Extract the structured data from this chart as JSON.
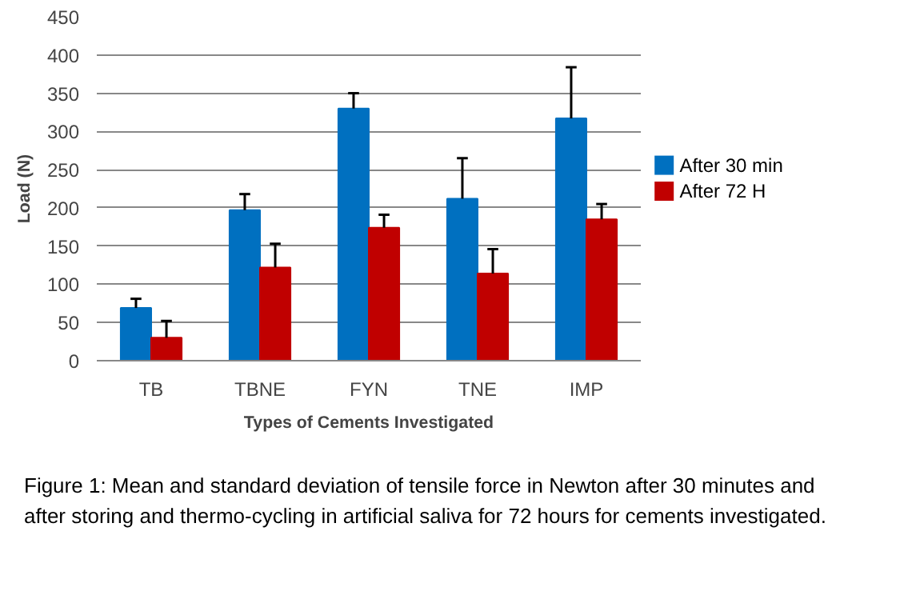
{
  "chart_data": {
    "type": "bar",
    "xlabel": "Types of Cements Investigated",
    "ylabel": "Load (N)",
    "categories": [
      "TB",
      "TBNE",
      "FYN",
      "TNE",
      "IMP"
    ],
    "series": [
      {
        "name": "After 30 min",
        "color": "#0070c0",
        "values": [
          69,
          197,
          330,
          212,
          317
        ],
        "errors": [
          [
            69,
            81
          ],
          [
            197,
            218
          ],
          [
            330,
            350
          ],
          [
            212,
            265
          ],
          [
            317,
            384
          ]
        ]
      },
      {
        "name": "After 72 H",
        "color": "#c00000",
        "values": [
          30,
          122,
          174,
          114,
          185
        ],
        "errors": [
          [
            30,
            52
          ],
          [
            122,
            153
          ],
          [
            174,
            191
          ],
          [
            114,
            146
          ],
          [
            185,
            205
          ]
        ]
      }
    ],
    "ylim": [
      0,
      450
    ],
    "yticks": [
      0,
      50,
      100,
      150,
      200,
      250,
      300,
      350,
      400,
      450
    ],
    "grid": "y",
    "legend": "right",
    "annotations": [
      "Figure 1: Mean and standard deviation of tensile force in Newton after 30 minutes and after storing and thermo-cycling in artificial saliva for 72 hours for cements investigated."
    ]
  }
}
